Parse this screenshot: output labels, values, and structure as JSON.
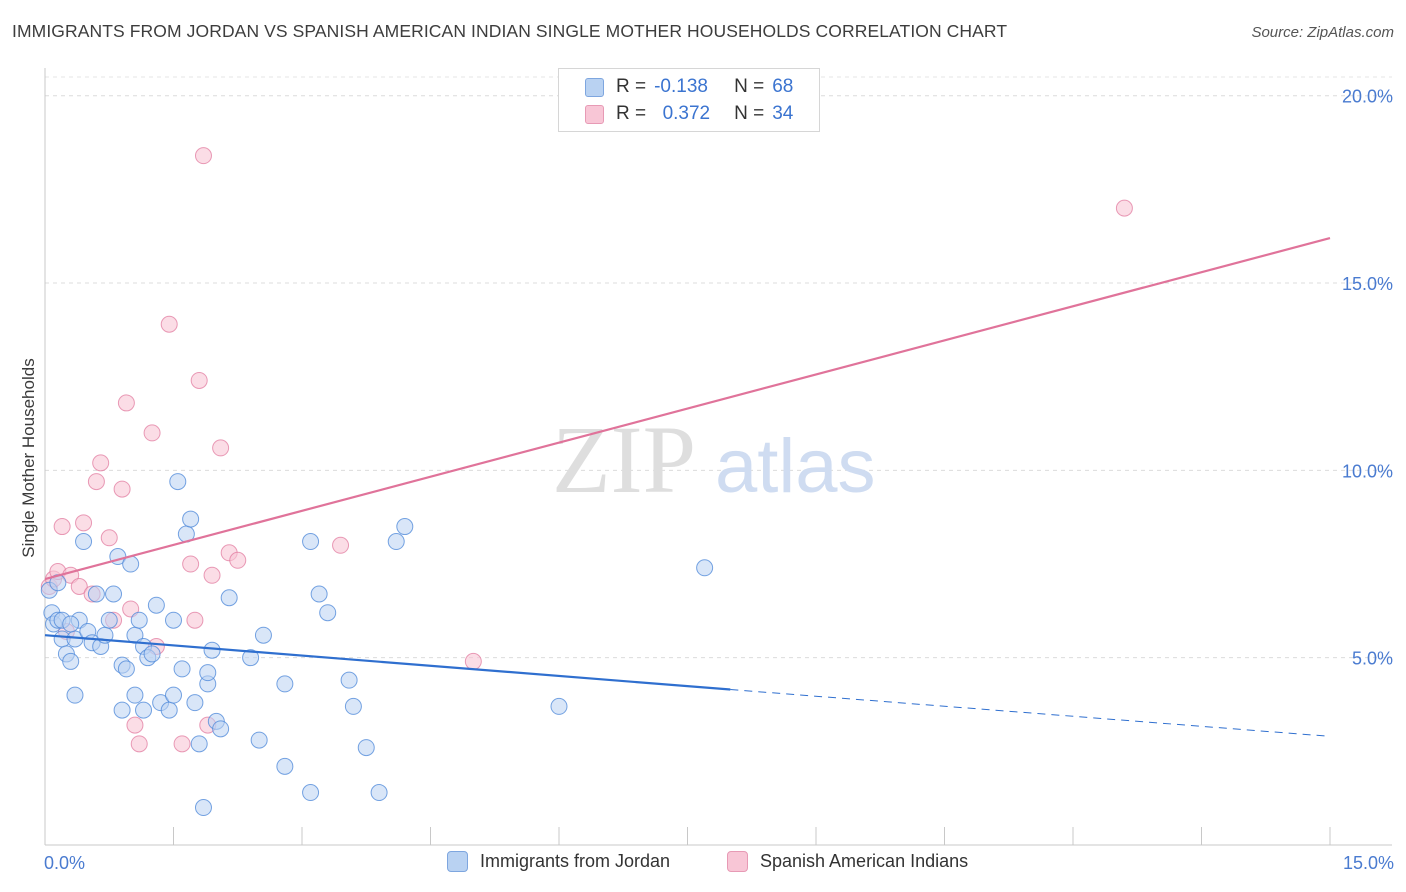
{
  "title": "IMMIGRANTS FROM JORDAN VS SPANISH AMERICAN INDIAN SINGLE MOTHER HOUSEHOLDS CORRELATION CHART",
  "source": "Source: ZipAtlas.com",
  "watermark": {
    "zip": "ZIP",
    "atlas": "atlas"
  },
  "colors": {
    "blue": "#4a86d8",
    "blue_fill": "#b9d2f2",
    "pink": "#e0739a",
    "pink_fill": "#f8c6d6",
    "axis_text": "#4a7bd0"
  },
  "legend": {
    "rows": [
      {
        "r_label": "R =",
        "r_value": "-0.138",
        "n_label": "N =",
        "n_value": "68"
      },
      {
        "r_label": "R =",
        "r_value": "0.372",
        "n_label": "N =",
        "n_value": "34"
      }
    ]
  },
  "bottom_legend": [
    "Immigrants from Jordan",
    "Spanish American Indians"
  ],
  "chart_data": {
    "type": "scatter",
    "title": "IMMIGRANTS FROM JORDAN VS SPANISH AMERICAN INDIAN SINGLE MOTHER HOUSEHOLDS CORRELATION CHART",
    "xlabel": "",
    "ylabel": "Single Mother Households",
    "xlim": [
      0,
      15
    ],
    "ylim": [
      0,
      20.5
    ],
    "x_tick_labels": [
      "0.0%",
      "15.0%"
    ],
    "y_ticks": [
      5,
      10,
      15,
      20
    ],
    "y_tick_labels": [
      "5.0%",
      "10.0%",
      "15.0%",
      "20.0%"
    ],
    "grid": true,
    "legend_position": "top-center",
    "series": [
      {
        "name": "Immigrants from Jordan",
        "R": -0.138,
        "N": 68,
        "trend": {
          "x0": 0,
          "y0": 5.6,
          "x1": 8.0,
          "y1": 4.15,
          "dash_to_x": 15,
          "dash_to_y": 2.9
        },
        "points": [
          [
            0.05,
            6.8
          ],
          [
            0.08,
            6.2
          ],
          [
            0.1,
            5.9
          ],
          [
            0.15,
            6.0
          ],
          [
            0.2,
            5.5
          ],
          [
            0.25,
            5.1
          ],
          [
            0.3,
            4.9
          ],
          [
            0.35,
            5.5
          ],
          [
            0.4,
            6.0
          ],
          [
            0.45,
            8.1
          ],
          [
            0.5,
            5.7
          ],
          [
            0.55,
            5.4
          ],
          [
            0.6,
            6.7
          ],
          [
            0.65,
            5.3
          ],
          [
            0.7,
            5.6
          ],
          [
            0.75,
            6.0
          ],
          [
            0.8,
            6.7
          ],
          [
            0.85,
            7.7
          ],
          [
            0.9,
            4.8
          ],
          [
            0.95,
            4.7
          ],
          [
            1.0,
            7.5
          ],
          [
            1.05,
            5.6
          ],
          [
            1.1,
            6.0
          ],
          [
            1.15,
            5.3
          ],
          [
            1.2,
            5.0
          ],
          [
            1.3,
            6.4
          ],
          [
            1.35,
            3.8
          ],
          [
            1.45,
            3.6
          ],
          [
            1.5,
            4.0
          ],
          [
            1.5,
            6.0
          ],
          [
            1.55,
            9.7
          ],
          [
            1.6,
            4.7
          ],
          [
            1.65,
            8.3
          ],
          [
            1.7,
            8.7
          ],
          [
            1.75,
            3.8
          ],
          [
            1.8,
            2.7
          ],
          [
            1.85,
            1.0
          ],
          [
            1.9,
            4.3
          ],
          [
            1.95,
            5.2
          ],
          [
            2.0,
            3.3
          ],
          [
            2.05,
            3.1
          ],
          [
            2.15,
            6.6
          ],
          [
            2.4,
            5.0
          ],
          [
            2.5,
            2.8
          ],
          [
            2.55,
            5.6
          ],
          [
            2.8,
            2.1
          ],
          [
            2.8,
            4.3
          ],
          [
            3.1,
            8.1
          ],
          [
            3.2,
            6.7
          ],
          [
            3.3,
            6.2
          ],
          [
            3.55,
            4.4
          ],
          [
            3.6,
            3.7
          ],
          [
            3.75,
            2.6
          ],
          [
            3.9,
            1.4
          ],
          [
            4.1,
            8.1
          ],
          [
            4.2,
            8.5
          ],
          [
            6.0,
            3.7
          ],
          [
            7.7,
            7.4
          ],
          [
            1.05,
            4.0
          ],
          [
            0.35,
            4.0
          ],
          [
            0.9,
            3.6
          ],
          [
            0.2,
            6.0
          ],
          [
            0.3,
            5.9
          ],
          [
            1.25,
            5.1
          ],
          [
            1.9,
            4.6
          ],
          [
            3.1,
            1.4
          ],
          [
            0.15,
            7.0
          ],
          [
            1.15,
            3.6
          ]
        ]
      },
      {
        "name": "Spanish American Indians",
        "R": 0.372,
        "N": 34,
        "trend": {
          "x0": 0,
          "y0": 7.1,
          "x1": 15,
          "y1": 16.2
        },
        "points": [
          [
            0.05,
            6.9
          ],
          [
            0.1,
            7.1
          ],
          [
            0.15,
            7.3
          ],
          [
            0.2,
            8.5
          ],
          [
            0.25,
            5.7
          ],
          [
            0.3,
            7.2
          ],
          [
            0.4,
            6.9
          ],
          [
            0.45,
            8.6
          ],
          [
            0.55,
            6.7
          ],
          [
            0.6,
            9.7
          ],
          [
            0.65,
            10.2
          ],
          [
            0.75,
            8.2
          ],
          [
            0.8,
            6.0
          ],
          [
            0.9,
            9.5
          ],
          [
            0.95,
            11.8
          ],
          [
            1.0,
            6.3
          ],
          [
            1.05,
            3.2
          ],
          [
            1.1,
            2.7
          ],
          [
            1.25,
            11.0
          ],
          [
            1.3,
            5.3
          ],
          [
            1.45,
            13.9
          ],
          [
            1.6,
            2.7
          ],
          [
            1.7,
            7.5
          ],
          [
            1.75,
            6.0
          ],
          [
            1.8,
            12.4
          ],
          [
            1.85,
            18.4
          ],
          [
            1.9,
            3.2
          ],
          [
            1.95,
            7.2
          ],
          [
            2.05,
            10.6
          ],
          [
            2.15,
            7.8
          ],
          [
            2.25,
            7.6
          ],
          [
            3.45,
            8.0
          ],
          [
            5.0,
            4.9
          ],
          [
            12.6,
            17.0
          ]
        ]
      }
    ]
  }
}
